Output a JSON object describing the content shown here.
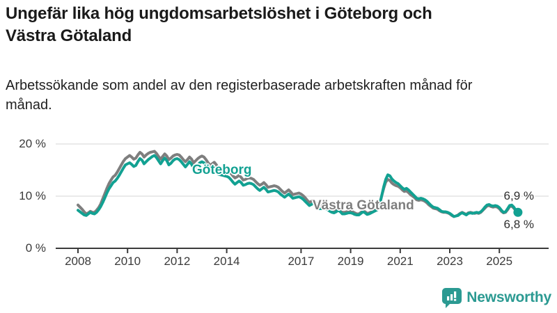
{
  "title": "Ungefär lika hög ungdomsarbetslöshet i Göteborg och Västra Götaland",
  "subtitle": "Arbetssökande som andel av den registerbaserade arbetskraften månad för månad.",
  "logo": {
    "text": "Newsworthy",
    "icon": "bar-chart-speech-bubble-icon"
  },
  "colors": {
    "goteborg_line": "#12a192",
    "vastra_gotaland_line": "#7e7e7e",
    "grid": "#e3e3e3",
    "axis": "#3a3a3a",
    "tick_text": "#3a3a3a",
    "end_label_text": "#2e2e2e",
    "logo_teal": "#2b9a92"
  },
  "chart_data": {
    "type": "line",
    "frequency": "monthly",
    "x_start": "2008-01",
    "x_end": "2025-10",
    "grid": "horizontal-only",
    "ylim": [
      0,
      20
    ],
    "yticks": [
      {
        "value": 0,
        "label": "0 %"
      },
      {
        "value": 10,
        "label": "10 %"
      },
      {
        "value": 20,
        "label": "20 %"
      }
    ],
    "xticks": [
      {
        "value": 2008,
        "label": "2008"
      },
      {
        "value": 2010,
        "label": "2010"
      },
      {
        "value": 2012,
        "label": "2012"
      },
      {
        "value": 2014,
        "label": "2014"
      },
      {
        "value": 2017,
        "label": "2017"
      },
      {
        "value": 2019,
        "label": "2019"
      },
      {
        "value": 2021,
        "label": "2021"
      },
      {
        "value": 2023,
        "label": "2023"
      },
      {
        "value": 2025,
        "label": "2025"
      }
    ],
    "series": [
      {
        "name": "Göteborg",
        "color": "#12a192",
        "end_value_label": "6,9 %",
        "has_end_dot": true,
        "values": [
          7.3,
          7.0,
          6.7,
          6.4,
          6.3,
          6.6,
          6.9,
          6.7,
          6.6,
          6.9,
          7.4,
          8.0,
          8.8,
          9.7,
          10.6,
          11.4,
          12.0,
          12.6,
          12.9,
          13.4,
          14.0,
          14.7,
          15.4,
          16.0,
          16.2,
          16.4,
          16.1,
          15.7,
          15.9,
          16.6,
          17.2,
          16.9,
          16.2,
          16.6,
          17.0,
          17.3,
          17.6,
          17.8,
          17.4,
          16.8,
          16.2,
          16.8,
          17.3,
          16.8,
          16.0,
          16.3,
          16.8,
          17.1,
          17.2,
          17.0,
          16.6,
          16.1,
          15.6,
          16.1,
          16.6,
          16.1,
          15.3,
          15.6,
          16.0,
          16.4,
          16.6,
          16.4,
          15.9,
          15.3,
          14.8,
          15.1,
          15.4,
          14.9,
          14.2,
          14.1,
          14.0,
          13.9,
          13.8,
          13.6,
          13.2,
          12.7,
          12.3,
          12.6,
          12.9,
          12.6,
          12.1,
          12.2,
          12.4,
          12.5,
          12.4,
          12.2,
          11.8,
          11.4,
          11.1,
          11.4,
          11.7,
          11.3,
          10.8,
          10.9,
          11.0,
          11.1,
          11.0,
          10.8,
          10.4,
          10.1,
          9.8,
          10.1,
          10.4,
          10.0,
          9.6,
          9.7,
          9.8,
          9.9,
          9.7,
          9.4,
          9.0,
          8.6,
          8.2,
          8.4,
          8.6,
          8.2,
          7.7,
          7.6,
          7.6,
          7.7,
          7.6,
          7.4,
          7.1,
          6.9,
          6.8,
          7.0,
          7.3,
          7.0,
          6.6,
          6.6,
          6.7,
          6.8,
          6.8,
          6.7,
          6.5,
          6.4,
          6.4,
          6.7,
          7.0,
          6.8,
          6.5,
          6.6,
          6.8,
          7.0,
          7.2,
          7.4,
          8.2,
          10.0,
          11.8,
          13.2,
          14.1,
          13.9,
          13.3,
          12.9,
          12.6,
          12.4,
          12.0,
          11.6,
          11.3,
          11.5,
          11.2,
          10.8,
          10.4,
          10.0,
          9.6,
          9.5,
          9.6,
          9.5,
          9.3,
          9.0,
          8.6,
          8.2,
          7.9,
          7.8,
          7.7,
          7.4,
          7.1,
          7.0,
          7.0,
          6.9,
          6.7,
          6.4,
          6.1,
          6.2,
          6.3,
          6.6,
          6.8,
          6.6,
          6.4,
          6.7,
          6.8,
          6.7,
          6.8,
          6.9,
          6.8,
          7.0,
          7.4,
          7.9,
          8.3,
          8.4,
          8.2,
          8.1,
          8.2,
          8.1,
          7.8,
          7.3,
          6.9,
          7.0,
          7.6,
          8.2,
          8.3,
          7.9,
          7.3,
          6.9
        ]
      },
      {
        "name": "Västra Götaland",
        "color": "#7e7e7e",
        "end_value_label": "6,8 %",
        "has_end_dot": false,
        "values": [
          8.3,
          7.9,
          7.5,
          7.0,
          6.6,
          6.8,
          7.1,
          6.9,
          6.9,
          7.3,
          7.8,
          8.5,
          9.5,
          10.5,
          11.5,
          12.4,
          13.1,
          13.7,
          14.0,
          14.6,
          15.3,
          16.0,
          16.7,
          17.2,
          17.5,
          17.8,
          17.5,
          17.1,
          17.3,
          17.9,
          18.4,
          18.1,
          17.5,
          17.9,
          18.2,
          18.4,
          18.5,
          18.6,
          18.2,
          17.6,
          17.1,
          17.6,
          18.1,
          17.7,
          17.0,
          17.3,
          17.7,
          17.9,
          18.0,
          17.9,
          17.5,
          17.0,
          16.6,
          17.0,
          17.5,
          17.1,
          16.4,
          16.8,
          17.2,
          17.5,
          17.7,
          17.5,
          17.0,
          16.4,
          15.9,
          16.2,
          16.5,
          16.0,
          15.3,
          15.2,
          15.1,
          15.0,
          15.0,
          14.8,
          14.4,
          13.9,
          13.5,
          13.7,
          14.0,
          13.6,
          13.1,
          13.2,
          13.4,
          13.5,
          13.4,
          13.2,
          12.8,
          12.4,
          12.1,
          12.3,
          12.6,
          12.2,
          11.7,
          11.8,
          11.9,
          12.0,
          11.9,
          11.7,
          11.3,
          10.9,
          10.6,
          10.9,
          11.2,
          10.8,
          10.3,
          10.4,
          10.5,
          10.6,
          10.4,
          10.1,
          9.7,
          9.2,
          8.8,
          9.0,
          9.2,
          8.8,
          8.2,
          8.1,
          8.1,
          8.2,
          8.1,
          7.9,
          7.6,
          7.3,
          7.1,
          7.3,
          7.6,
          7.3,
          6.9,
          6.9,
          7.0,
          7.1,
          7.1,
          7.0,
          6.8,
          6.6,
          6.6,
          6.9,
          7.2,
          7.0,
          6.7,
          6.8,
          7.0,
          7.2,
          7.4,
          7.6,
          8.4,
          10.0,
          11.5,
          12.7,
          13.2,
          13.0,
          12.5,
          12.2,
          12.0,
          11.9,
          11.6,
          11.2,
          10.9,
          11.0,
          10.7,
          10.3,
          10.0,
          9.7,
          9.3,
          9.2,
          9.3,
          9.2,
          9.0,
          8.7,
          8.3,
          8.0,
          7.7,
          7.6,
          7.5,
          7.2,
          7.0,
          6.9,
          6.9,
          6.8,
          6.6,
          6.3,
          6.1,
          6.2,
          6.4,
          6.7,
          6.9,
          6.7,
          6.5,
          6.8,
          6.9,
          6.8,
          6.7,
          6.8,
          6.7,
          6.9,
          7.3,
          7.7,
          8.1,
          8.2,
          8.0,
          7.9,
          8.0,
          7.9,
          7.6,
          7.1,
          6.8,
          6.9,
          7.4,
          8.0,
          8.1,
          7.7,
          7.2,
          6.8
        ]
      }
    ],
    "legend_position": "labels-on-lines"
  }
}
